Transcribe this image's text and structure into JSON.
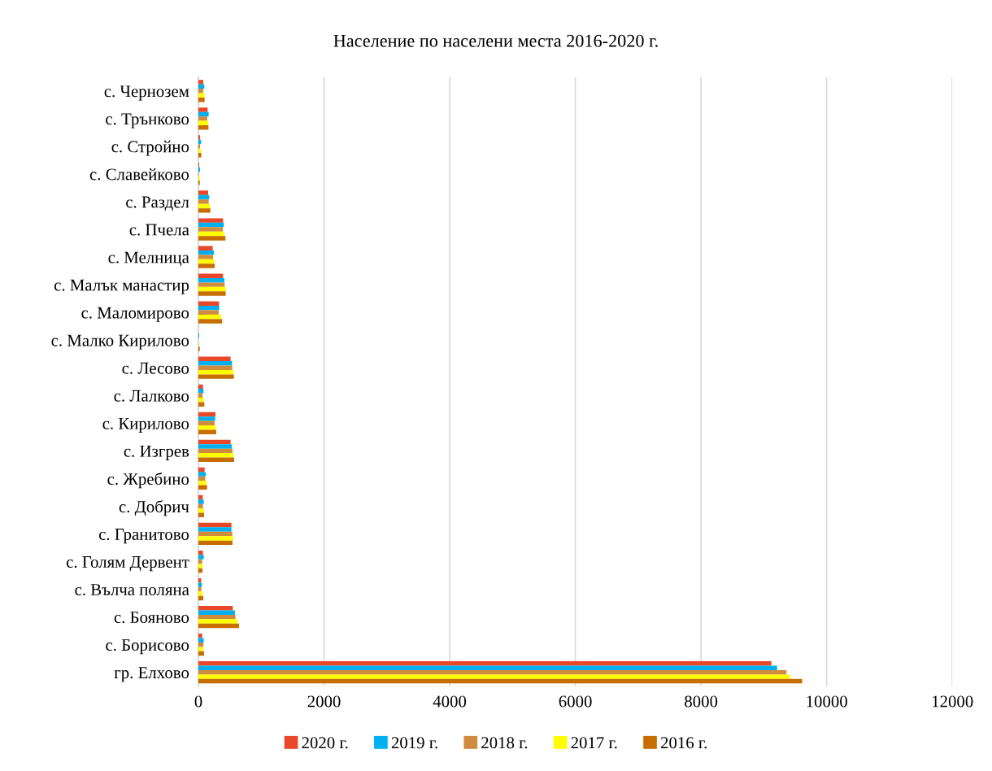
{
  "chart_data": {
    "type": "bar",
    "orientation": "horizontal",
    "title": "Население по населени места 2016-2020 г.",
    "categories": [
      "с. Чернозем",
      "с. Трънково",
      "с. Стройно",
      "с. Славейково",
      "с. Раздел",
      "с. Пчела",
      "с. Мелница",
      "с. Малък манастир",
      "с. Маломирово",
      "с. Малко Кирилово",
      "с. Лесово",
      "с. Лалково",
      "с. Кирилово",
      "с. Изгрев",
      "с. Жребино",
      "с. Добрич",
      "с. Гранитово",
      "с. Голям Дервент",
      "с. Вълча поляна",
      "с. Бояново",
      "с. Борисово",
      "гр. Елхово"
    ],
    "series": [
      {
        "name": "2020 г.",
        "color": "#e8472a",
        "values": [
          78,
          147,
          26,
          13,
          155,
          392,
          228,
          392,
          328,
          null,
          513,
          73,
          272,
          513,
          99,
          69,
          526,
          73,
          43,
          547,
          60,
          9120
        ]
      },
      {
        "name": "2019 г.",
        "color": "#00b0f0",
        "values": [
          95,
          164,
          43,
          26,
          172,
          405,
          246,
          414,
          332,
          13,
          534,
          82,
          267,
          530,
          116,
          86,
          526,
          86,
          56,
          582,
          85,
          9210
        ]
      },
      {
        "name": "2018 г.",
        "color": "#d08c3c",
        "values": [
          78,
          142,
          26,
          9,
          164,
          388,
          233,
          418,
          323,
          null,
          539,
          65,
          259,
          543,
          108,
          73,
          539,
          60,
          47,
          590,
          80,
          9360
        ]
      },
      {
        "name": "2017 г.",
        "color": "#ffff00",
        "values": [
          95,
          155,
          39,
          22,
          185,
          409,
          250,
          435,
          362,
          9,
          556,
          86,
          276,
          556,
          129,
          91,
          552,
          69,
          65,
          621,
          75,
          9420
        ]
      },
      {
        "name": "2016 г.",
        "color": "#c86e00",
        "values": [
          99,
          160,
          47,
          22,
          190,
          431,
          259,
          435,
          379,
          22,
          565,
          95,
          284,
          569,
          138,
          91,
          543,
          65,
          78,
          647,
          90,
          9610
        ]
      }
    ],
    "xlim": [
      0,
      12000
    ],
    "xticks": [
      0,
      2000,
      4000,
      6000,
      8000,
      10000,
      12000
    ],
    "grid": "x",
    "legend": "bottom"
  }
}
